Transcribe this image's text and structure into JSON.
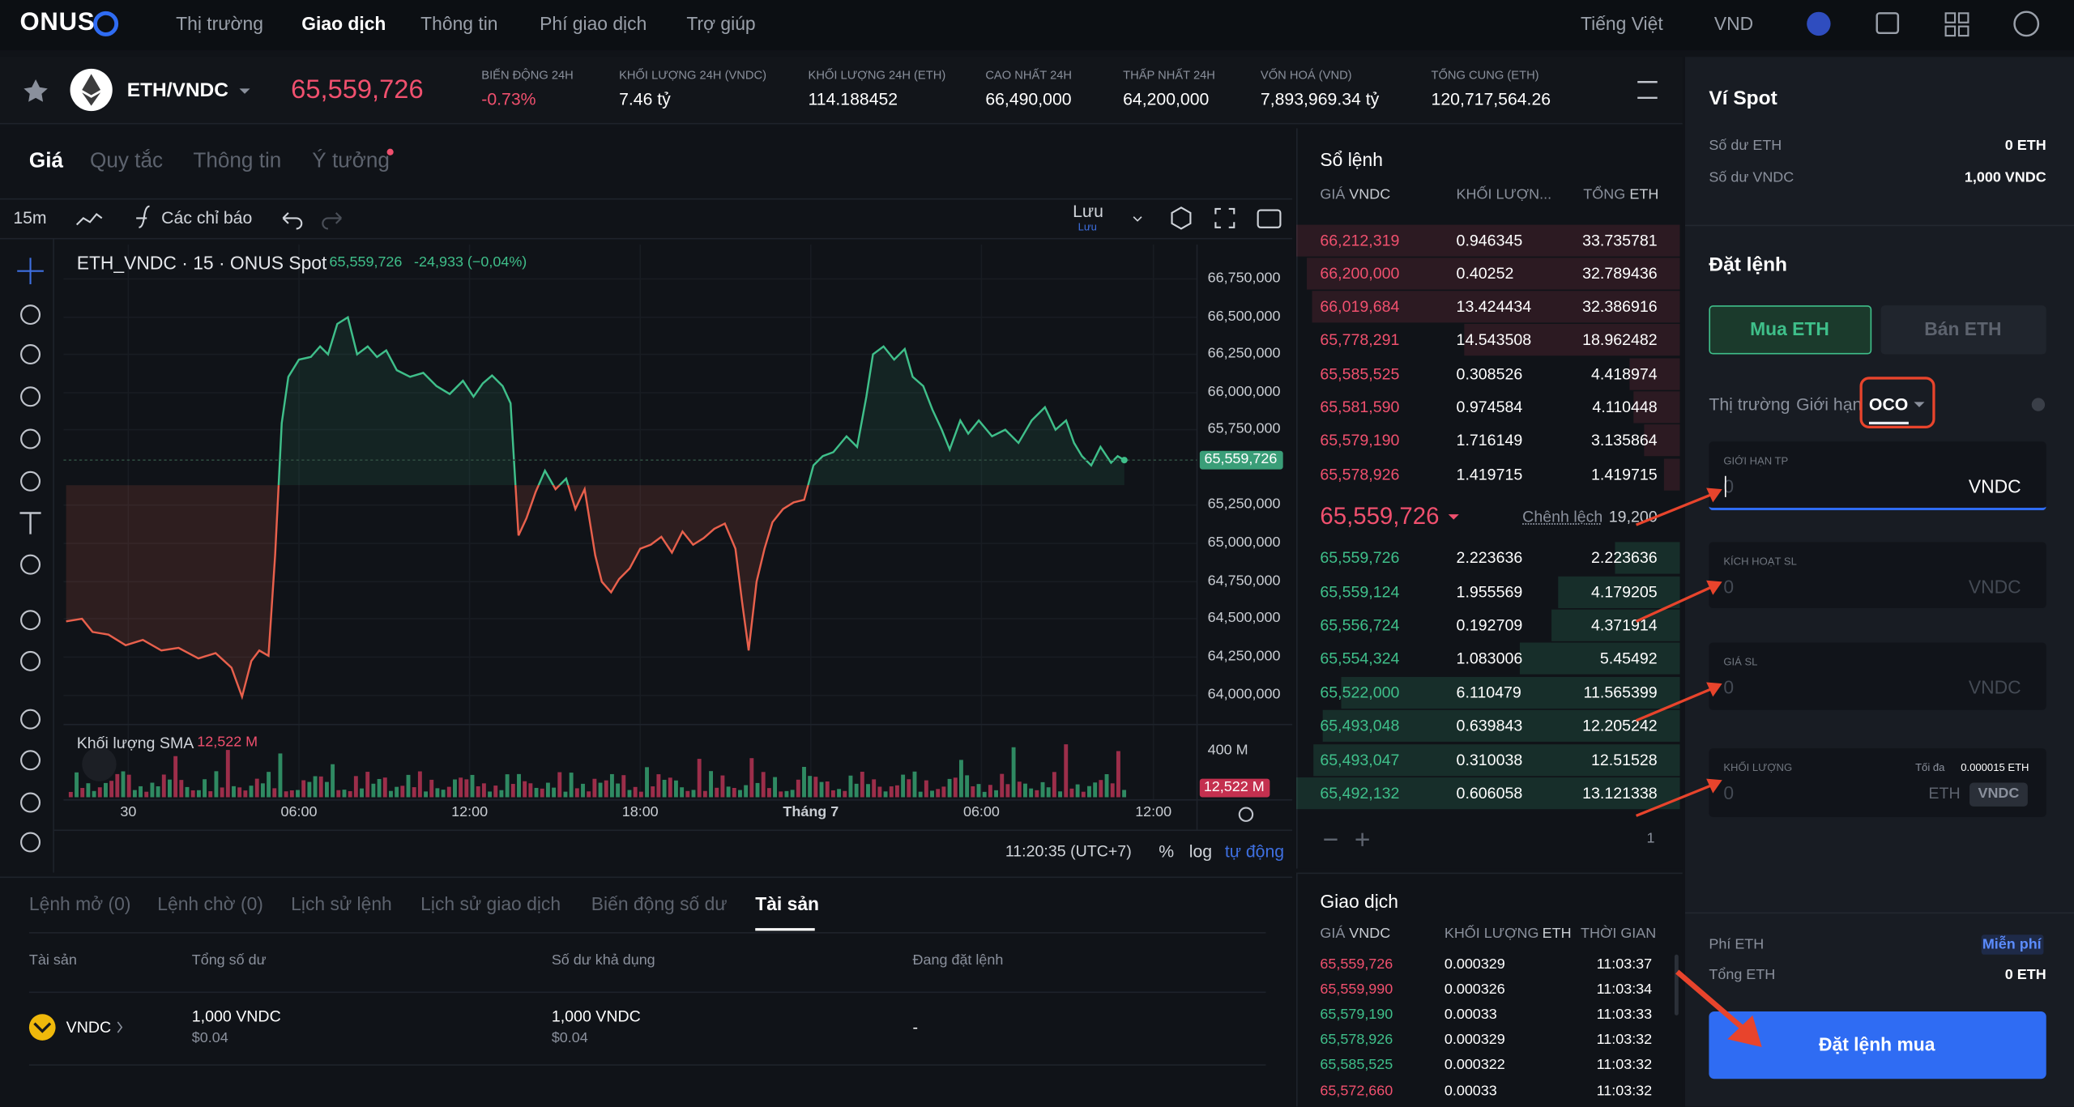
{
  "nav": {
    "logo": "ONUS",
    "items": [
      "Thị trường",
      "Giao dịch",
      "Thông tin",
      "Phí giao dịch",
      "Trợ giúp"
    ],
    "language": "Tiếng Việt",
    "currency": "VND"
  },
  "ticker": {
    "pair": "ETH/VNDC",
    "price": "65,559,726",
    "stats": [
      {
        "label": "BIẾN ĐỘNG 24H",
        "value": "-0.73%"
      },
      {
        "label": "KHỐI LƯỢNG 24H (VNDC)",
        "value": "7.46 tỷ"
      },
      {
        "label": "KHỐI LƯỢNG 24H (ETH)",
        "value": "114.188452"
      },
      {
        "label": "CAO NHẤT 24H",
        "value": "66,490,000"
      },
      {
        "label": "THẤP NHẤT 24H",
        "value": "64,200,000"
      },
      {
        "label": "VỐN HOÁ (VND)",
        "value": "7,893,969.34 tỷ"
      },
      {
        "label": "TỔNG CUNG (ETH)",
        "value": "120,717,564.26"
      }
    ]
  },
  "chart": {
    "tabs": [
      "Giá",
      "Quy tắc",
      "Thông tin",
      "Ý tưởng"
    ],
    "interval": "15m",
    "indicators": "Các chỉ báo",
    "save": "Lưu",
    "save_sub": "Lưu",
    "legend": {
      "symbol": "ETH_VNDC · 15 · ONUS Spot",
      "price": "65,559,726",
      "change": "-24,933 (−0,04%)"
    },
    "y_labels": [
      "66,750,000",
      "66,500,000",
      "66,250,000",
      "66,000,000",
      "65,750,000",
      "65,250,000",
      "65,000,000",
      "64,750,000",
      "64,500,000",
      "64,250,000",
      "64,000,000"
    ],
    "price_badge": "65,559,726",
    "volume": {
      "label": "Khối lượng SMA",
      "value": "12,522 M",
      "axis": "400 M",
      "badge": "12,522 M"
    },
    "x_labels": [
      "30",
      "06:00",
      "12:00",
      "18:00",
      "Tháng 7",
      "06:00",
      "12:00"
    ],
    "time": "11:20:35 (UTC+7)",
    "scale_options": [
      "%",
      "log",
      "tự động"
    ]
  },
  "bottom": {
    "tabs": [
      "Lệnh mở (0)",
      "Lệnh chờ (0)",
      "Lịch sử lệnh",
      "Lịch sử giao dịch",
      "Biến động số dư",
      "Tài sản"
    ],
    "headers": [
      "Tài sản",
      "Tổng số dư",
      "Số dư khả dụng",
      "Đang đặt lệnh"
    ],
    "rows": [
      {
        "asset": "VNDC",
        "total": "1,000 VNDC",
        "total_usd": "$0.04",
        "available": "1,000 VNDC",
        "available_usd": "$0.04",
        "in_order": "-"
      }
    ]
  },
  "order_book": {
    "title": "Sổ lệnh",
    "headers": [
      {
        "label": "GIÁ",
        "unit": "VNDC"
      },
      {
        "label": "KHỐI LƯỢN..."
      },
      {
        "label": "TỔNG",
        "unit": "ETH"
      }
    ],
    "asks": [
      [
        "66,212,319",
        "0.946345",
        "33.735781"
      ],
      [
        "66,200,000",
        "0.40252",
        "32.789436"
      ],
      [
        "66,019,684",
        "13.424434",
        "32.386916"
      ],
      [
        "65,778,291",
        "14.543508",
        "18.962482"
      ],
      [
        "65,585,525",
        "0.308526",
        "4.418974"
      ],
      [
        "65,581,590",
        "0.974584",
        "4.110448"
      ],
      [
        "65,579,190",
        "1.716149",
        "3.135864"
      ],
      [
        "65,578,926",
        "1.419715",
        "1.419715"
      ]
    ],
    "last_price": "65,559,726",
    "spread_label": "Chênh lệch",
    "spread": "19,200",
    "bids": [
      [
        "65,559,726",
        "2.223636",
        "2.223636"
      ],
      [
        "65,559,124",
        "1.955569",
        "4.179205"
      ],
      [
        "65,556,724",
        "0.192709",
        "4.371914"
      ],
      [
        "65,554,324",
        "1.083006",
        "5.45492"
      ],
      [
        "65,522,000",
        "6.110479",
        "11.565399"
      ],
      [
        "65,493,048",
        "0.639843",
        "12.205242"
      ],
      [
        "65,493,047",
        "0.310038",
        "12.51528"
      ],
      [
        "65,492,132",
        "0.606058",
        "13.121338"
      ]
    ],
    "step": "1"
  },
  "trades": {
    "title": "Giao dịch",
    "headers": [
      {
        "label": "GIÁ",
        "unit": "VNDC"
      },
      {
        "label": "KHỐI LƯỢNG",
        "unit": "ETH"
      },
      {
        "label": "THỜI GIAN"
      }
    ],
    "rows": [
      {
        "price": "65,559,726",
        "amount": "0.000329",
        "time": "11:03:37",
        "color": "#f0506e"
      },
      {
        "price": "65,559,990",
        "amount": "0.000326",
        "time": "11:03:34",
        "color": "#f0506e"
      },
      {
        "price": "65,579,190",
        "amount": "0.00033",
        "time": "11:03:33",
        "color": "#3fbf8a"
      },
      {
        "price": "65,578,926",
        "amount": "0.000329",
        "time": "11:03:32",
        "color": "#3fbf8a"
      },
      {
        "price": "65,585,525",
        "amount": "0.000322",
        "time": "11:03:32",
        "color": "#3fbf8a"
      },
      {
        "price": "65,572,660",
        "amount": "0.00033",
        "time": "11:03:32",
        "color": "#f0506e"
      }
    ]
  },
  "wallet": {
    "title": "Ví Spot",
    "balances": [
      {
        "label": "Số dư ETH",
        "value": "0 ETH"
      },
      {
        "label": "Số dư VNDC",
        "value": "1,000 VNDC"
      }
    ]
  },
  "order_form": {
    "title": "Đặt lệnh",
    "buy": "Mua ETH",
    "sell": "Bán ETH",
    "types": [
      "Thị trường",
      "Giới hạn",
      "OCO"
    ],
    "fields": [
      {
        "label": "GIỚI HẠN TP",
        "placeholder": "0",
        "unit": "VNDC"
      },
      {
        "label": "KÍCH HOẠT SL",
        "placeholder": "0",
        "unit": "VNDC"
      },
      {
        "label": "GIÁ SL",
        "placeholder": "0",
        "unit": "VNDC"
      },
      {
        "label": "KHỐI LƯỢNG",
        "placeholder": "0",
        "unit": "ETH",
        "max_label": "Tối đa",
        "max": "0.000015 ETH",
        "alt_unit": "VNDC"
      }
    ],
    "fee_label": "Phí ETH",
    "fee": "Miễn phí",
    "total_label": "Tổng ETH",
    "total": "0 ETH",
    "submit": "Đặt lệnh mua"
  }
}
